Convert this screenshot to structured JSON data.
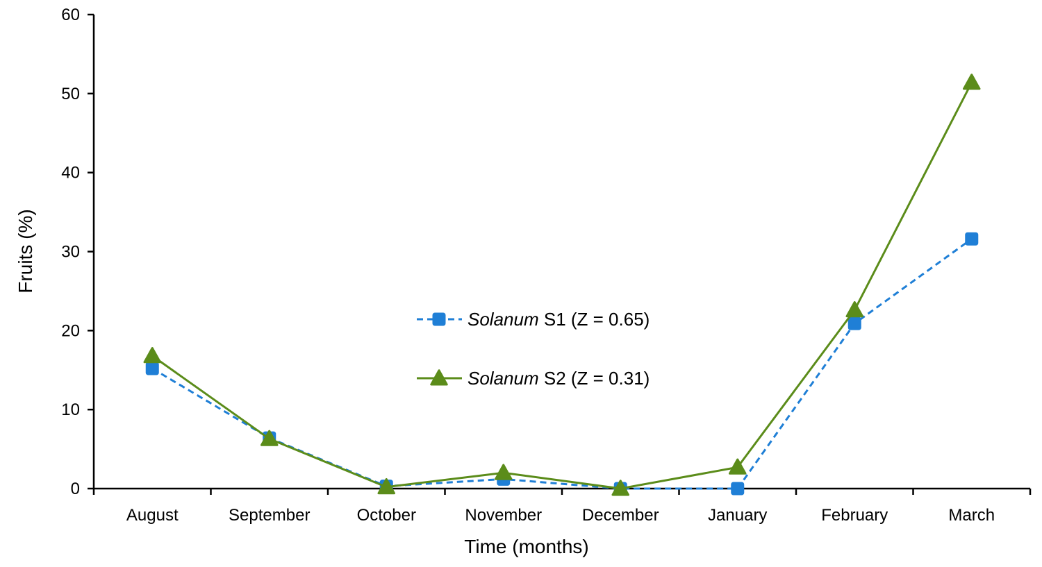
{
  "chart_data": {
    "type": "line",
    "title": "",
    "xlabel": "Time (months)",
    "ylabel": "Fruits (%)",
    "ylim": [
      0,
      60
    ],
    "yticks": [
      0,
      10,
      20,
      30,
      40,
      50,
      60
    ],
    "grid": false,
    "legend_placement": "center",
    "categories": [
      "August",
      "September",
      "October",
      "November",
      "December",
      "January",
      "February",
      "March"
    ],
    "series": [
      {
        "name_italic": "Solanum",
        "name_rest": " S1 (Z = 0.65)",
        "values": [
          15.2,
          6.4,
          0.3,
          1.2,
          0.0,
          0.0,
          20.9,
          31.6
        ],
        "color": "#1f7fd6",
        "line_style": "dashed",
        "marker": "square"
      },
      {
        "name_italic": "Solanum",
        "name_rest": " S2 (Z = 0.31)",
        "values": [
          16.8,
          6.3,
          0.2,
          2.0,
          0.0,
          2.7,
          22.6,
          51.4
        ],
        "color": "#5b8c1a",
        "line_style": "solid",
        "marker": "triangle"
      }
    ]
  }
}
